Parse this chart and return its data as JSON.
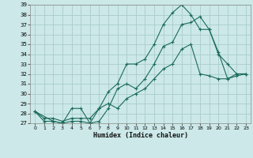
{
  "xlabel": "Humidex (Indice chaleur)",
  "background_color": "#cce8e8",
  "line_color": "#1a6b5a",
  "grid_color": "#aacccc",
  "xlim": [
    -0.5,
    23.5
  ],
  "ylim": [
    27,
    39
  ],
  "xticks": [
    0,
    1,
    2,
    3,
    4,
    5,
    6,
    7,
    8,
    9,
    10,
    11,
    12,
    13,
    14,
    15,
    16,
    17,
    18,
    19,
    20,
    21,
    22,
    23
  ],
  "yticks": [
    27,
    28,
    29,
    30,
    31,
    32,
    33,
    34,
    35,
    36,
    37,
    38,
    39
  ],
  "series1_x": [
    0,
    1,
    2,
    3,
    4,
    5,
    6,
    7,
    8,
    9,
    10,
    11,
    12,
    13,
    14,
    15,
    16,
    17,
    18,
    19,
    20,
    21,
    22,
    23
  ],
  "series1_y": [
    28.2,
    27.2,
    27.2,
    27.0,
    27.2,
    27.2,
    27.0,
    27.2,
    28.5,
    30.5,
    31.0,
    30.5,
    31.5,
    33.0,
    34.8,
    35.2,
    37.0,
    37.2,
    37.8,
    36.5,
    34.2,
    31.5,
    32.0,
    32.0
  ],
  "series2_x": [
    0,
    2,
    3,
    4,
    5,
    6,
    7,
    8,
    9,
    10,
    11,
    12,
    13,
    14,
    15,
    16,
    17,
    18,
    19,
    20,
    21,
    22,
    23
  ],
  "series2_y": [
    28.2,
    27.2,
    27.0,
    28.5,
    28.5,
    27.0,
    28.5,
    30.2,
    31.0,
    33.0,
    33.0,
    33.5,
    35.0,
    37.0,
    38.2,
    39.0,
    38.0,
    36.5,
    36.5,
    34.0,
    33.0,
    32.0,
    32.0
  ],
  "series3_x": [
    0,
    1,
    2,
    3,
    4,
    5,
    6,
    7,
    8,
    9,
    10,
    11,
    12,
    13,
    14,
    15,
    16,
    17,
    18,
    19,
    20,
    21,
    22,
    23
  ],
  "series3_y": [
    28.2,
    27.5,
    27.5,
    27.2,
    27.5,
    27.5,
    27.5,
    28.5,
    29.0,
    28.5,
    29.5,
    30.0,
    30.5,
    31.5,
    32.5,
    33.0,
    34.5,
    35.0,
    32.0,
    31.8,
    31.5,
    31.5,
    31.8,
    32.0
  ]
}
